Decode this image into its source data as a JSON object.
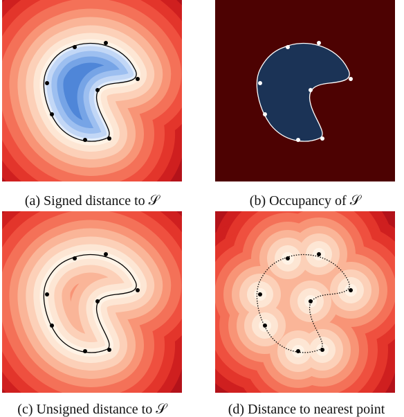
{
  "panels": [
    {
      "caption": "(a) Signed distance to 𝒮"
    },
    {
      "caption": "(b) Occupancy of 𝒮"
    },
    {
      "caption": "(c) Unsigned distance to 𝒮"
    },
    {
      "caption": "(d) Distance to nearest point"
    }
  ]
}
